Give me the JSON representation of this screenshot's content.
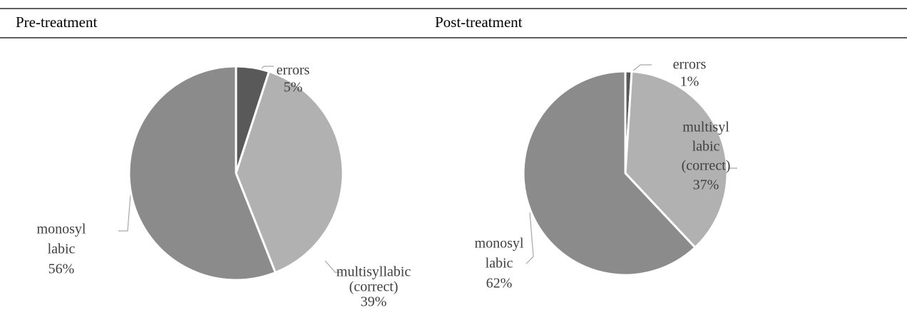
{
  "chart_data": [
    {
      "type": "pie",
      "title": "Pre-treatment",
      "categories": [
        [
          "errors"
        ],
        [
          "multisyllabic",
          "(correct)"
        ],
        [
          "monosyl",
          "labic"
        ]
      ],
      "values": [
        5,
        39,
        56
      ],
      "value_labels": [
        "5%",
        "39%",
        "56%"
      ],
      "colors": [
        "#595959",
        "#b1b1b1",
        "#8b8b8b"
      ]
    },
    {
      "type": "pie",
      "title": "Post-treatment",
      "categories": [
        [
          "errors"
        ],
        [
          "multisyl",
          "labic",
          "(correct)"
        ],
        [
          "monosyl",
          "labic"
        ]
      ],
      "values": [
        1,
        37,
        62
      ],
      "value_labels": [
        "1%",
        "37%",
        "62%"
      ],
      "colors": [
        "#595959",
        "#b1b1b1",
        "#8b8b8b"
      ]
    }
  ]
}
